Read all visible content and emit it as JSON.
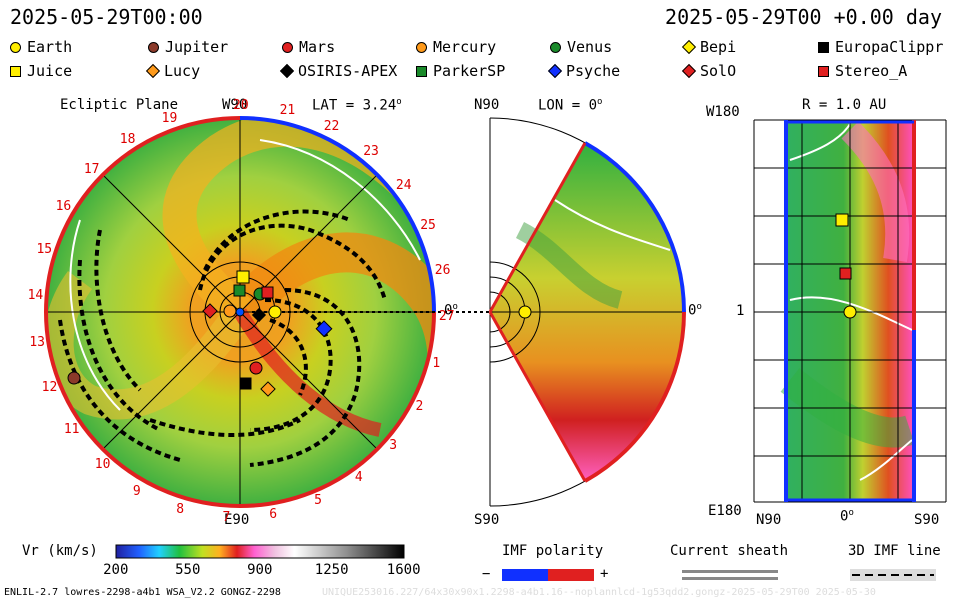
{
  "header": {
    "timestamp_left": "2025-05-29T00:00",
    "timestamp_right": "2025-05-29T00 +0.00 day"
  },
  "legend": [
    {
      "label": "Earth",
      "color": "#ffee00",
      "shape": "circle"
    },
    {
      "label": "Jupiter",
      "color": "#8b3a2a",
      "shape": "circle"
    },
    {
      "label": "Mars",
      "color": "#e02020",
      "shape": "circle"
    },
    {
      "label": "Mercury",
      "color": "#ff9a1a",
      "shape": "circle"
    },
    {
      "label": "Venus",
      "color": "#1a8a2a",
      "shape": "circle"
    },
    {
      "label": "Bepi",
      "color": "#ffee00",
      "shape": "diamond"
    },
    {
      "label": "EuropaClippr",
      "color": "#000000",
      "shape": "square"
    },
    {
      "label": "Juice",
      "color": "#ffee00",
      "shape": "square"
    },
    {
      "label": "Lucy",
      "color": "#ff9a1a",
      "shape": "diamond"
    },
    {
      "label": "OSIRIS-APEX",
      "color": "#000000",
      "shape": "diamond"
    },
    {
      "label": "ParkerSP",
      "color": "#1a8a2a",
      "shape": "square"
    },
    {
      "label": "Psyche",
      "color": "#1030ff",
      "shape": "diamond"
    },
    {
      "label": "SolO",
      "color": "#e02020",
      "shape": "diamond"
    },
    {
      "label": "Stereo_A",
      "color": "#e02020",
      "shape": "square"
    }
  ],
  "ecliptic": {
    "title": "Ecliptic Plane",
    "top_label": "W90",
    "lat_label": "LAT = 3.24",
    "lat_sup": "o",
    "bottom_label": "E90",
    "right_label": "0",
    "right_sup": "o",
    "ticks": [
      "20",
      "21",
      "22",
      "23",
      "24",
      "25",
      "26",
      "27",
      "1",
      "2",
      "3",
      "4",
      "5",
      "6",
      "7",
      "8",
      "9",
      "10",
      "11",
      "12",
      "13",
      "14",
      "15",
      "16",
      "17",
      "18",
      "19"
    ]
  },
  "meridional": {
    "top_label": "N90",
    "lon_label": "LON = 0",
    "lon_sup": "o",
    "bottom_label": "S90",
    "right_label": "0",
    "right_sup": "o"
  },
  "radial": {
    "r_label": "R = 1.0 AU",
    "top_left": "W180",
    "mid_left": "1",
    "bottom_left": "E180",
    "bottom_n": "N90",
    "bottom_mid": "0",
    "bottom_mid_sup": "o",
    "bottom_s": "S90"
  },
  "colorbar": {
    "title": "Vr (km/s)",
    "ticks": [
      "200",
      "550",
      "900",
      "1250",
      "1600"
    ]
  },
  "imf": {
    "title": "IMF polarity",
    "minus": "−",
    "plus": "+"
  },
  "sheath": {
    "title": "Current sheath"
  },
  "imf3d": {
    "title": "3D IMF line"
  },
  "footer": {
    "left": "ENLIL-2.7 lowres-2298-a4b1 WSA_V2.2 GONGZ-2298",
    "right": "UNIQUE253016.227/64x30x90x1.2298-a4b1.16--noplannlcd-1g53qdd2.gongz-2025-05-29T00   2025-05-30"
  }
}
